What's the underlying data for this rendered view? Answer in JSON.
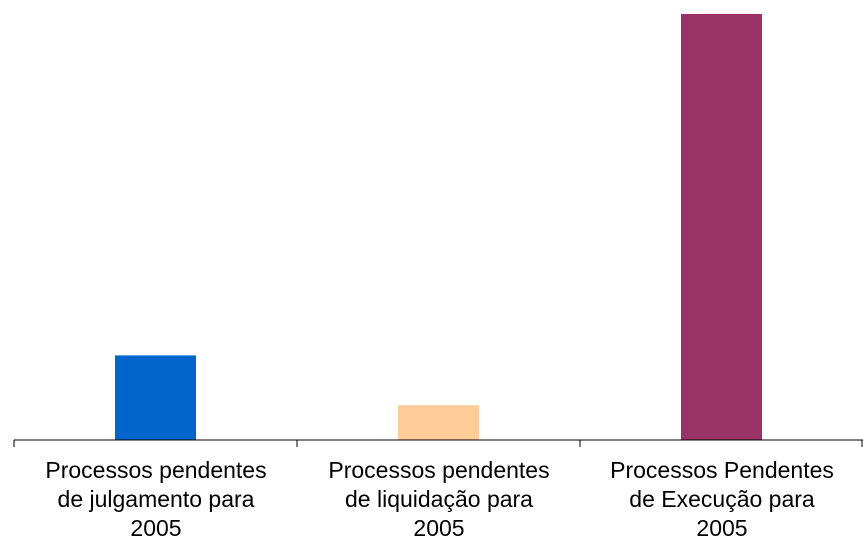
{
  "chart_data": {
    "type": "bar",
    "title": "",
    "xlabel": "",
    "ylabel": "",
    "categories": [
      "Processos pendentes\nde  julgamento para\n2005",
      "Processos pendentes\nde liquidação para\n2005",
      "Processos  Pendentes\nde Execução para\n2005"
    ],
    "values": [
      85,
      35,
      428
    ],
    "ylim": [
      0,
      430
    ],
    "colors": [
      "#0066CC",
      "#FFCC99",
      "#993366"
    ],
    "grid": false,
    "legend": "none"
  }
}
